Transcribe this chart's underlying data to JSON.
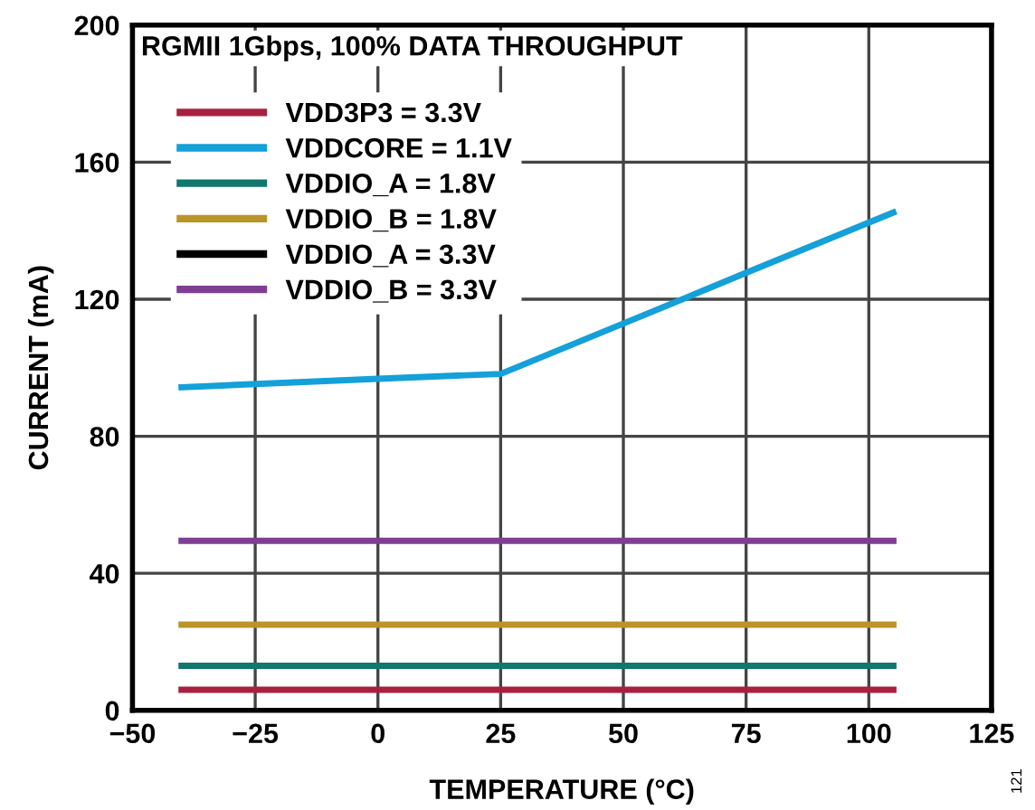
{
  "chart_data": {
    "type": "line",
    "title": "RGMII 1Gbps, 100% DATA THROUGHPUT",
    "xlabel": "TEMPERATURE (°C)",
    "ylabel": "CURRENT (mA)",
    "x": [
      -40,
      0,
      25,
      50,
      75,
      105
    ],
    "series": [
      {
        "name": "VDD3P3 = 3.3V",
        "color": "#a8203f",
        "values": [
          6,
          6,
          6,
          6,
          6,
          6
        ]
      },
      {
        "name": "VDDCORE = 1.1V",
        "color": "#14a0d8",
        "values": [
          94.3,
          96.8,
          98.2,
          112.9,
          127.7,
          145.3
        ]
      },
      {
        "name": "VDDIO_A = 1.8V",
        "color": "#11776f",
        "values": [
          13,
          13,
          13,
          13,
          13,
          13
        ]
      },
      {
        "name": "VDDIO_B = 1.8V",
        "color": "#bb9428",
        "values": [
          25,
          25,
          25,
          25,
          25,
          25
        ]
      },
      {
        "name": "VDDIO_A = 3.3V",
        "color": "#000000",
        "values": [
          null,
          null,
          null,
          null,
          null,
          null
        ]
      },
      {
        "name": "VDDIO_B = 3.3V",
        "color": "#7e3f91",
        "values": [
          49.5,
          49.5,
          49.5,
          49.5,
          49.5,
          49.5
        ]
      }
    ],
    "xlim": [
      -50,
      125
    ],
    "xticks": [
      {
        "value": -50,
        "label": "−50"
      },
      {
        "value": -25,
        "label": "−25"
      },
      0,
      25,
      50,
      75,
      100,
      125
    ],
    "ylim": [
      0,
      200
    ],
    "yticks": [
      0,
      40,
      80,
      120,
      160,
      200
    ],
    "grid": true,
    "legend": "top left",
    "line_style": "solid",
    "marker": "none",
    "annotations": [
      "121"
    ]
  }
}
